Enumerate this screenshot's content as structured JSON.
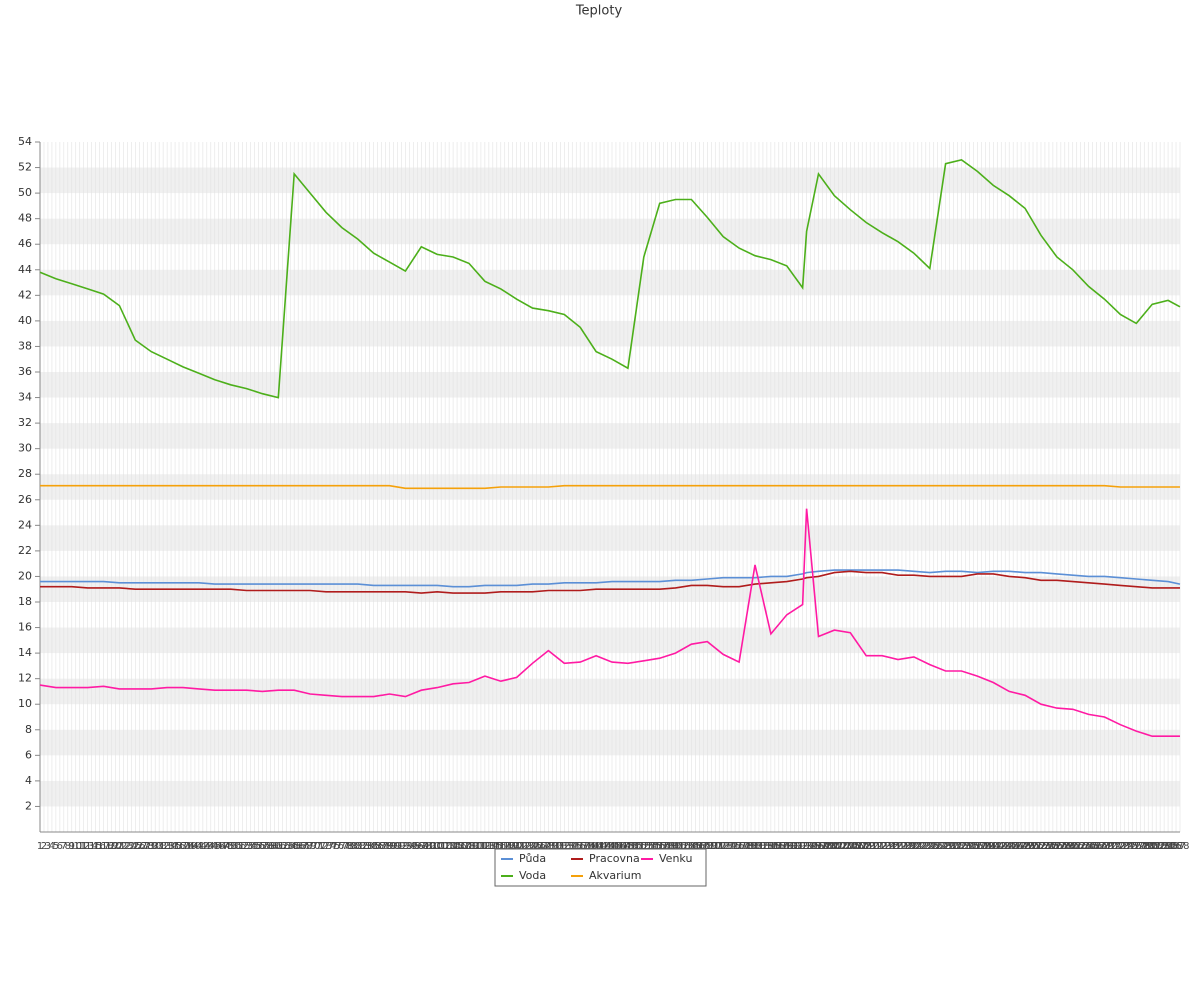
{
  "chart_data": {
    "type": "line",
    "title": "Teploty",
    "x": [
      1,
      5,
      9,
      13,
      17,
      21,
      25,
      29,
      33,
      37,
      41,
      45,
      49,
      53,
      57,
      61,
      65,
      69,
      73,
      77,
      81,
      85,
      89,
      93,
      97,
      101,
      105,
      109,
      113,
      117,
      121,
      125,
      129,
      133,
      137,
      141,
      145,
      149,
      153,
      157,
      161,
      165,
      169,
      173,
      177,
      181,
      185,
      189,
      193,
      194,
      197,
      201,
      205,
      209,
      213,
      217,
      221,
      225,
      229,
      233,
      237,
      241,
      245,
      249,
      253,
      257,
      261,
      265,
      269,
      273,
      277,
      281,
      285,
      288
    ],
    "xlim": [
      1,
      288
    ],
    "xticks": [
      1,
      2,
      3,
      4,
      5,
      6,
      7,
      8,
      9,
      10,
      11,
      12,
      13,
      14,
      15,
      16,
      17,
      18,
      19,
      20,
      21,
      22,
      23,
      24,
      25,
      26,
      27,
      28,
      29,
      30,
      31,
      32,
      33,
      34,
      35,
      36,
      37,
      38,
      39,
      40,
      41,
      42,
      43,
      44,
      45,
      46,
      47,
      48,
      49,
      50,
      51,
      52,
      53,
      54,
      55,
      56,
      57,
      58,
      59,
      60,
      61,
      62,
      63,
      64,
      65,
      66,
      67,
      68,
      69,
      70,
      71,
      72,
      73,
      74,
      75,
      76,
      77,
      78,
      79,
      80,
      81,
      82,
      83,
      84,
      85,
      86,
      87,
      88,
      89,
      90,
      91,
      92,
      93,
      94,
      95,
      96,
      97,
      98,
      99,
      100,
      101,
      102,
      103,
      104,
      105,
      106,
      107,
      108,
      109,
      110,
      111,
      112,
      113,
      114,
      115,
      116,
      117,
      118,
      119,
      120,
      121,
      122,
      123,
      124,
      125,
      126,
      127,
      128,
      129,
      130,
      131,
      132,
      133,
      134,
      135,
      136,
      137,
      138,
      139,
      140,
      141,
      142,
      143,
      144,
      145,
      146,
      147,
      148,
      149,
      150,
      151,
      152,
      153,
      154,
      155,
      156,
      157,
      158,
      159,
      160,
      161,
      162,
      163,
      164,
      165,
      166,
      167,
      168,
      169,
      170,
      171,
      172,
      173,
      174,
      175,
      176,
      177,
      178,
      179,
      180,
      181,
      182,
      183,
      184,
      185,
      186,
      187,
      188,
      189,
      190,
      191,
      192,
      193,
      194,
      195,
      196,
      197,
      198,
      199,
      200,
      201,
      202,
      203,
      204,
      205,
      206,
      207,
      208,
      209,
      210,
      211,
      212,
      213,
      214,
      215,
      216,
      217,
      218,
      219,
      220,
      221,
      222,
      223,
      224,
      225,
      226,
      227,
      228,
      229,
      230,
      231,
      232,
      233,
      234,
      235,
      236,
      237,
      238,
      239,
      240,
      241,
      242,
      243,
      244,
      245,
      246,
      247,
      248,
      249,
      250,
      251,
      252,
      253,
      254,
      255,
      256,
      257,
      258,
      259,
      260,
      261,
      262,
      263,
      264,
      265,
      266,
      267,
      268,
      269,
      270,
      271,
      272,
      273,
      274,
      275,
      276,
      277,
      278,
      279,
      280,
      281,
      282,
      283,
      284,
      285,
      286,
      287,
      288
    ],
    "ylim": [
      0,
      54
    ],
    "yticks": [
      2,
      4,
      6,
      8,
      10,
      12,
      14,
      16,
      18,
      20,
      22,
      24,
      26,
      28,
      30,
      32,
      34,
      36,
      38,
      40,
      42,
      44,
      46,
      48,
      50,
      52,
      54
    ],
    "grid": true,
    "legend": "bottom",
    "series": [
      {
        "name": "Půda",
        "color": "#5b8fd6",
        "values": [
          19.6,
          19.6,
          19.6,
          19.6,
          19.6,
          19.5,
          19.5,
          19.5,
          19.5,
          19.5,
          19.5,
          19.4,
          19.4,
          19.4,
          19.4,
          19.4,
          19.4,
          19.4,
          19.4,
          19.4,
          19.4,
          19.3,
          19.3,
          19.3,
          19.3,
          19.3,
          19.2,
          19.2,
          19.3,
          19.3,
          19.3,
          19.4,
          19.4,
          19.5,
          19.5,
          19.5,
          19.6,
          19.6,
          19.6,
          19.6,
          19.7,
          19.7,
          19.8,
          19.9,
          19.9,
          19.9,
          20.0,
          20.0,
          20.2,
          20.3,
          20.4,
          20.5,
          20.5,
          20.5,
          20.5,
          20.5,
          20.4,
          20.3,
          20.4,
          20.4,
          20.3,
          20.4,
          20.4,
          20.3,
          20.3,
          20.2,
          20.1,
          20.0,
          20.0,
          19.9,
          19.8,
          19.7,
          19.6,
          19.4
        ]
      },
      {
        "name": "Voda",
        "color": "#4caf1a",
        "values": [
          43.8,
          43.3,
          42.9,
          42.5,
          42.1,
          41.2,
          38.5,
          37.6,
          37.0,
          36.4,
          35.9,
          35.4,
          35.0,
          34.7,
          34.3,
          34.0,
          51.5,
          50.0,
          48.5,
          47.3,
          46.4,
          45.3,
          44.6,
          43.9,
          45.8,
          45.2,
          45.0,
          44.5,
          43.1,
          42.5,
          41.7,
          41.0,
          40.8,
          40.5,
          39.5,
          37.6,
          37.0,
          36.3,
          45.0,
          49.2,
          49.5,
          49.5,
          48.1,
          46.6,
          45.7,
          45.1,
          44.8,
          44.3,
          42.6,
          47.0,
          51.5,
          49.8,
          48.7,
          47.7,
          46.9,
          46.2,
          45.3,
          44.1,
          52.3,
          52.6,
          51.7,
          50.6,
          49.8,
          48.8,
          46.7,
          45.0,
          44.0,
          42.7,
          41.7,
          40.5,
          39.8,
          41.3,
          41.6,
          41.1
        ]
      },
      {
        "name": "Pracovna",
        "color": "#b01c1c",
        "values": [
          19.2,
          19.2,
          19.2,
          19.1,
          19.1,
          19.1,
          19.0,
          19.0,
          19.0,
          19.0,
          19.0,
          19.0,
          19.0,
          18.9,
          18.9,
          18.9,
          18.9,
          18.9,
          18.8,
          18.8,
          18.8,
          18.8,
          18.8,
          18.8,
          18.7,
          18.8,
          18.7,
          18.7,
          18.7,
          18.8,
          18.8,
          18.8,
          18.9,
          18.9,
          18.9,
          19.0,
          19.0,
          19.0,
          19.0,
          19.0,
          19.1,
          19.3,
          19.3,
          19.2,
          19.2,
          19.4,
          19.5,
          19.6,
          19.8,
          19.9,
          20.0,
          20.3,
          20.4,
          20.3,
          20.3,
          20.1,
          20.1,
          20.0,
          20.0,
          20.0,
          20.2,
          20.2,
          20.0,
          19.9,
          19.7,
          19.7,
          19.6,
          19.5,
          19.4,
          19.3,
          19.2,
          19.1,
          19.1,
          19.1
        ]
      },
      {
        "name": "Akvarium",
        "color": "#f5a10a",
        "values": [
          27.1,
          27.1,
          27.1,
          27.1,
          27.1,
          27.1,
          27.1,
          27.1,
          27.1,
          27.1,
          27.1,
          27.1,
          27.1,
          27.1,
          27.1,
          27.1,
          27.1,
          27.1,
          27.1,
          27.1,
          27.1,
          27.1,
          27.1,
          26.9,
          26.9,
          26.9,
          26.9,
          26.9,
          26.9,
          27.0,
          27.0,
          27.0,
          27.0,
          27.1,
          27.1,
          27.1,
          27.1,
          27.1,
          27.1,
          27.1,
          27.1,
          27.1,
          27.1,
          27.1,
          27.1,
          27.1,
          27.1,
          27.1,
          27.1,
          27.1,
          27.1,
          27.1,
          27.1,
          27.1,
          27.1,
          27.1,
          27.1,
          27.1,
          27.1,
          27.1,
          27.1,
          27.1,
          27.1,
          27.1,
          27.1,
          27.1,
          27.1,
          27.1,
          27.1,
          27.0,
          27.0,
          27.0,
          27.0,
          27.0
        ]
      },
      {
        "name": "Venku",
        "color": "#ff1aa3",
        "values": [
          11.5,
          11.3,
          11.3,
          11.3,
          11.4,
          11.2,
          11.2,
          11.2,
          11.3,
          11.3,
          11.2,
          11.1,
          11.1,
          11.1,
          11.0,
          11.1,
          11.1,
          10.8,
          10.7,
          10.6,
          10.6,
          10.6,
          10.8,
          10.6,
          11.1,
          11.3,
          11.6,
          11.7,
          12.2,
          11.8,
          12.1,
          13.2,
          14.2,
          13.2,
          13.3,
          13.8,
          13.3,
          13.2,
          13.4,
          13.6,
          14.0,
          14.7,
          14.9,
          13.9,
          13.3,
          20.9,
          15.5,
          17.0,
          17.8,
          25.3,
          15.3,
          15.8,
          15.6,
          13.8,
          13.8,
          13.5,
          13.7,
          13.1,
          12.6,
          12.6,
          12.2,
          11.7,
          11.0,
          10.7,
          10.0,
          9.7,
          9.6,
          9.2,
          9.0,
          8.4,
          7.9,
          7.5,
          7.5,
          7.5
        ]
      }
    ]
  }
}
